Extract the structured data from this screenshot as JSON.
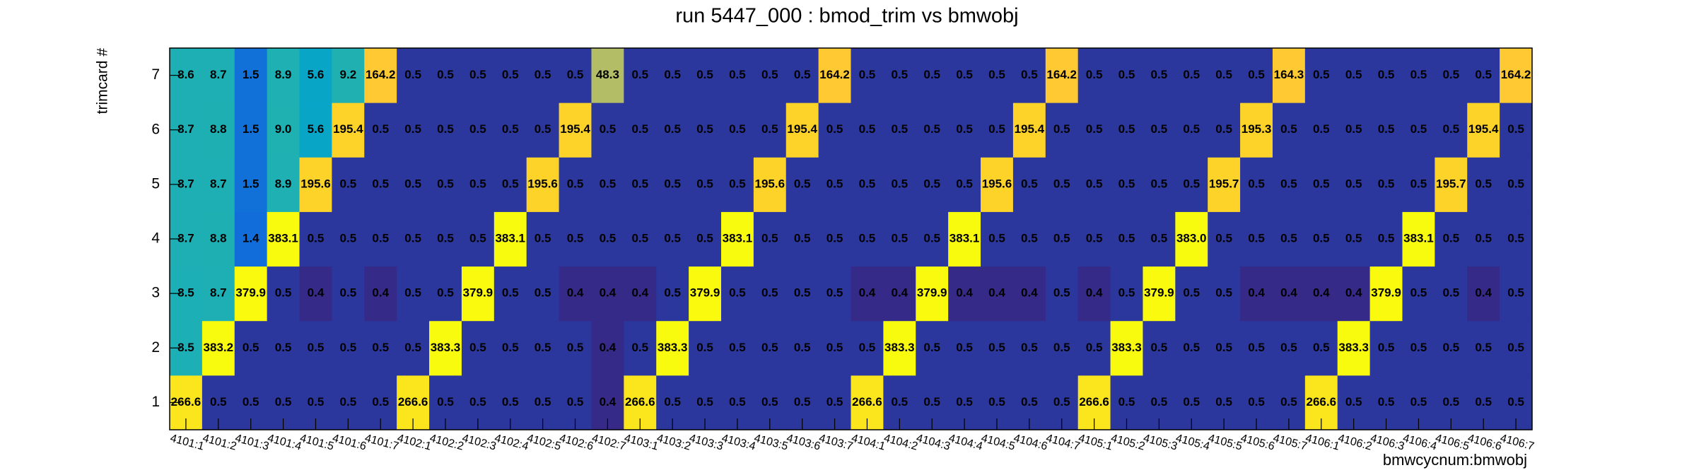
{
  "chart_data": {
    "type": "heatmap",
    "title": "run 5447_000 : bmod_trim vs bmwobj",
    "xlabel": "bmwcycnum:bmwobj",
    "ylabel": "trimcard #",
    "zlog": true,
    "palette": [
      "#352a87",
      "#0f5cdd",
      "#1481d6",
      "#06a4ca",
      "#2eb7a4",
      "#87bf77",
      "#d1bb59",
      "#fec832",
      "#f9fb0e"
    ],
    "x_categories": [
      "4101:1",
      "4101:2",
      "4101:3",
      "4101:4",
      "4101:5",
      "4101:6",
      "4101:7",
      "4102:1",
      "4102:2",
      "4102:3",
      "4102:4",
      "4102:5",
      "4102:6",
      "4102:7",
      "4103:1",
      "4103:2",
      "4103:3",
      "4103:4",
      "4103:5",
      "4103:6",
      "4103:7",
      "4104:1",
      "4104:2",
      "4104:3",
      "4104:4",
      "4104:5",
      "4104:6",
      "4104:7",
      "4105:1",
      "4105:2",
      "4105:3",
      "4105:4",
      "4105:5",
      "4105:6",
      "4105:7",
      "4106:1",
      "4106:2",
      "4106:3",
      "4106:4",
      "4106:5",
      "4106:6",
      "4106:7"
    ],
    "y_categories": [
      1,
      2,
      3,
      4,
      5,
      6,
      7
    ],
    "z": [
      [
        266.6,
        0.5,
        0.5,
        0.5,
        0.5,
        0.5,
        0.5,
        266.6,
        0.5,
        0.5,
        0.5,
        0.5,
        0.5,
        0.4,
        266.6,
        0.5,
        0.5,
        0.5,
        0.5,
        0.5,
        0.5,
        266.6,
        0.5,
        0.5,
        0.5,
        0.5,
        0.5,
        0.5,
        266.6,
        0.5,
        0.5,
        0.5,
        0.5,
        0.5,
        0.5,
        266.6,
        0.5,
        0.5,
        0.5,
        0.5,
        0.5,
        0.5
      ],
      [
        8.5,
        383.2,
        0.5,
        0.5,
        0.5,
        0.5,
        0.5,
        0.5,
        383.3,
        0.5,
        0.5,
        0.5,
        0.5,
        0.4,
        0.5,
        383.3,
        0.5,
        0.5,
        0.5,
        0.5,
        0.5,
        0.5,
        383.3,
        0.5,
        0.5,
        0.5,
        0.5,
        0.5,
        0.5,
        383.3,
        0.5,
        0.5,
        0.5,
        0.5,
        0.5,
        0.5,
        383.3,
        0.5,
        0.5,
        0.5,
        0.5,
        0.5
      ],
      [
        8.5,
        8.7,
        379.9,
        0.5,
        0.4,
        0.5,
        0.4,
        0.5,
        0.5,
        379.9,
        0.5,
        0.5,
        0.4,
        0.4,
        0.4,
        0.5,
        379.9,
        0.5,
        0.5,
        0.5,
        0.5,
        0.4,
        0.4,
        379.9,
        0.4,
        0.4,
        0.4,
        0.5,
        0.4,
        0.5,
        379.9,
        0.5,
        0.5,
        0.4,
        0.4,
        0.4,
        0.4,
        379.9,
        0.5,
        0.5,
        0.4,
        0.5
      ],
      [
        8.7,
        8.8,
        1.4,
        383.1,
        0.5,
        0.5,
        0.5,
        0.5,
        0.5,
        0.5,
        383.1,
        0.5,
        0.5,
        0.5,
        0.5,
        0.5,
        0.5,
        383.1,
        0.5,
        0.5,
        0.5,
        0.5,
        0.5,
        0.5,
        383.1,
        0.5,
        0.5,
        0.5,
        0.5,
        0.5,
        0.5,
        383.0,
        0.5,
        0.5,
        0.5,
        0.5,
        0.5,
        0.5,
        383.1,
        0.5,
        0.5,
        0.5
      ],
      [
        8.7,
        8.7,
        1.5,
        8.9,
        195.6,
        0.5,
        0.5,
        0.5,
        0.5,
        0.5,
        0.5,
        195.6,
        0.5,
        0.5,
        0.5,
        0.5,
        0.5,
        0.5,
        195.6,
        0.5,
        0.5,
        0.5,
        0.5,
        0.5,
        0.5,
        195.6,
        0.5,
        0.5,
        0.5,
        0.5,
        0.5,
        0.5,
        195.7,
        0.5,
        0.5,
        0.5,
        0.5,
        0.5,
        0.5,
        195.7,
        0.5,
        0.5
      ],
      [
        8.7,
        8.8,
        1.5,
        9.0,
        5.6,
        195.4,
        0.5,
        0.5,
        0.5,
        0.5,
        0.5,
        0.5,
        195.4,
        0.5,
        0.5,
        0.5,
        0.5,
        0.5,
        0.5,
        195.4,
        0.5,
        0.5,
        0.5,
        0.5,
        0.5,
        0.5,
        195.4,
        0.5,
        0.5,
        0.5,
        0.5,
        0.5,
        0.5,
        195.3,
        0.5,
        0.5,
        0.5,
        0.5,
        0.5,
        0.5,
        195.4,
        0.5
      ],
      [
        8.6,
        8.7,
        1.5,
        8.9,
        5.6,
        9.2,
        164.2,
        0.5,
        0.5,
        0.5,
        0.5,
        0.5,
        0.5,
        48.3,
        0.5,
        0.5,
        0.5,
        0.5,
        0.5,
        0.5,
        164.2,
        0.5,
        0.5,
        0.5,
        0.5,
        0.5,
        0.5,
        164.2,
        0.5,
        0.5,
        0.5,
        0.5,
        0.5,
        0.5,
        164.3,
        0.5,
        0.5,
        0.5,
        0.5,
        0.5,
        0.5,
        164.2
      ]
    ]
  }
}
